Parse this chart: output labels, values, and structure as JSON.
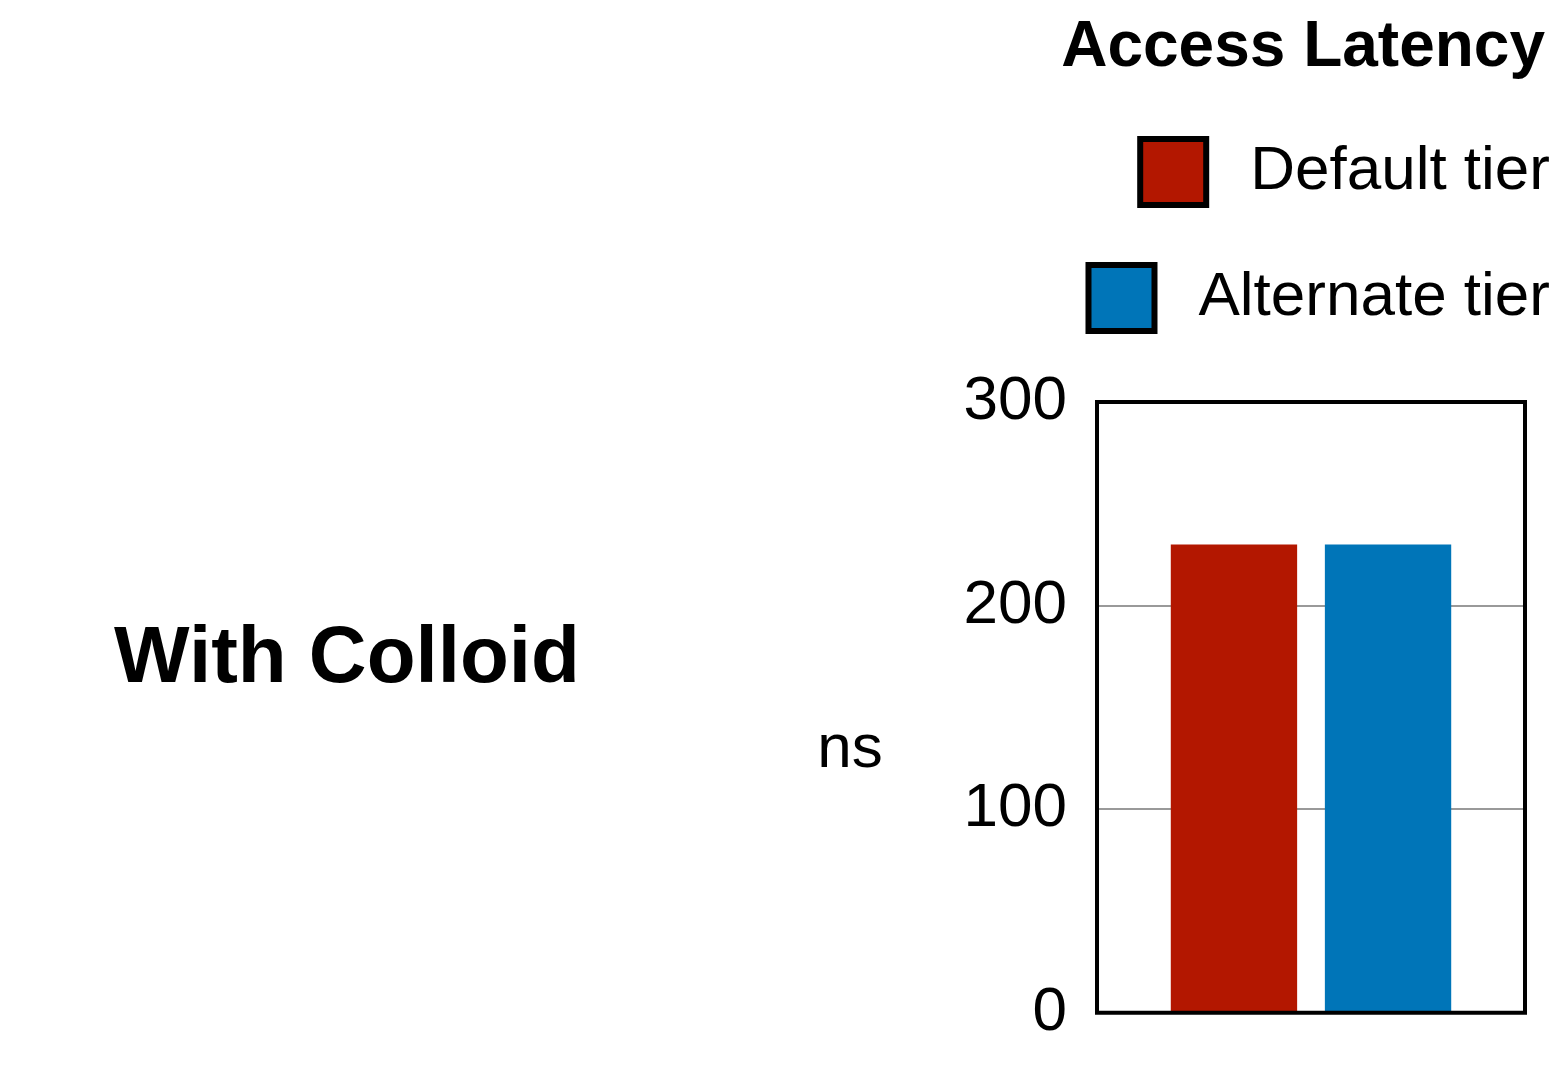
{
  "chart_data": {
    "type": "bar",
    "title": "Access Latency",
    "ylabel": "ns",
    "annotations": [
      "With Colloid"
    ],
    "categories": [
      null
    ],
    "series": [
      {
        "name": "Default tier",
        "color": "#b31700",
        "values": [
          230
        ]
      },
      {
        "name": "Alternate tier",
        "color": "#0075b8",
        "values": [
          230
        ]
      }
    ],
    "ylim": [
      0,
      300
    ],
    "yticks": [
      0,
      100,
      200,
      300
    ],
    "grid": "y",
    "legend": "top right"
  }
}
